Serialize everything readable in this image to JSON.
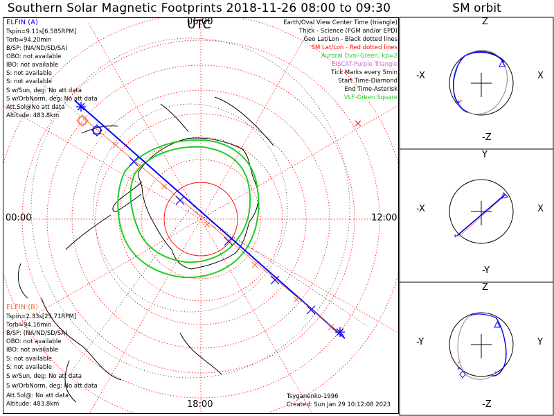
{
  "header": {
    "title": "Southern Solar Magnetic Footprints 2018-11-26 08:00 to 09:30 UTC",
    "orbit_title": "SM orbit"
  },
  "map": {
    "hour_labels": {
      "top": "06:00",
      "left": "00:00",
      "right": "12:00",
      "bottom": "18:00"
    }
  },
  "legend": {
    "items": [
      {
        "text": "Earth/Oval View Center Time (triangle)",
        "color": "#000000"
      },
      {
        "text": "Thick - Science (FGM and/or EPD)",
        "color": "#000000"
      },
      {
        "text": "Geo Lat/Lon - Black dotted lines",
        "color": "#000000"
      },
      {
        "text": "SM Lat/Lon - Red dotted lines",
        "color": "#ff0000"
      },
      {
        "text": "Auroral Oval-Green, kp=2",
        "color": "#22cc22"
      },
      {
        "text": "EISCAT-Purple Triangle",
        "color": "#cc66cc"
      },
      {
        "text": "Tick Marks every 5min",
        "color": "#000000"
      },
      {
        "text": "Start Time-Diamond",
        "color": "#000000"
      },
      {
        "text": "End Time-Asterisk",
        "color": "#000000"
      },
      {
        "text": "VLF-Green Square",
        "color": "#22cc22"
      }
    ]
  },
  "probe_a": {
    "name": "ELFIN (A)",
    "color": "#0000ff",
    "lines": [
      "Tspin=9.11s[6.585RPM]",
      "Torb=94.20min",
      "B/SP: (NA/ND/SD/SA)",
      "OBO: not available",
      "IBO: not available",
      "S: not available",
      "S: not available",
      "S w/Sun, deg: No att data",
      "S w/OrbNorm, deg: No att data",
      "Att.Sol@No att data",
      "Altitude: 483.8km"
    ]
  },
  "probe_b": {
    "name": "ELFIN (B)",
    "color": "#ff6633",
    "lines": [
      "Tspin=2.33s[25.71RPM]",
      "Torb=94.16min",
      "B/SP: (NA/ND/SD/SA)",
      "OBO: not available",
      "IBO: not available",
      "S: not available",
      "S: not available",
      "S w/Sun, deg: No att data",
      "S w/OrbNorm, deg: No att data",
      "Att.Sol@: No att data",
      "Altitude: 483.8km"
    ]
  },
  "footer": {
    "model": "Tsyganenko-1996",
    "created": "Created: Sun Jan 29 10:12:08 2023"
  },
  "orbit_panels": [
    {
      "top": "Z",
      "bottom": "-Z",
      "left": "-X",
      "right": "X"
    },
    {
      "top": "Y",
      "bottom": "-Y",
      "left": "-X",
      "right": "X"
    },
    {
      "top": "Z",
      "bottom": "-Z",
      "left": "-Y",
      "right": "Y"
    }
  ],
  "colors": {
    "elfin_a": "#0000ff",
    "elfin_b": "#ff6633",
    "sm_grid": "#ff0000",
    "auroral_oval": "#22cc22"
  },
  "icons": [
    "start-diamond-icon",
    "end-asterisk-icon",
    "view-center-triangle-icon"
  ]
}
